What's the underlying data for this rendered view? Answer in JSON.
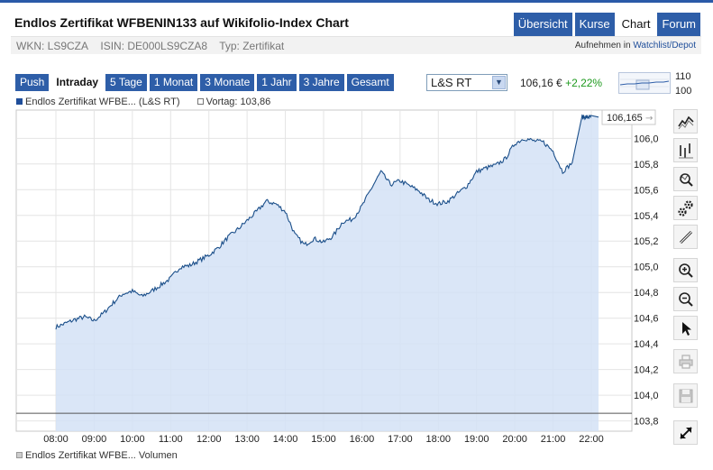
{
  "header": {
    "title": "Endlos Zertifikat WFBENIN133 auf Wikifolio-Index Chart",
    "nav": [
      {
        "label": "Übersicht",
        "active": false
      },
      {
        "label": "Kurse",
        "active": false
      },
      {
        "label": "Chart",
        "active": true
      },
      {
        "label": "Forum",
        "active": false
      }
    ],
    "wkn": "WKN: LS9CZA",
    "isin": "ISIN: DE000LS9CZA8",
    "typ": "Typ: Zertifikat",
    "watch_prefix": "Aufnehmen in",
    "watch_link": "Watchlist/Depot"
  },
  "toolbar": {
    "ranges": [
      {
        "label": "Push",
        "active": false
      },
      {
        "label": "Intraday",
        "active": true
      },
      {
        "label": "5 Tage",
        "active": false
      },
      {
        "label": "1 Monat",
        "active": false
      },
      {
        "label": "3 Monate",
        "active": false
      },
      {
        "label": "1 Jahr",
        "active": false
      },
      {
        "label": "3 Jahre",
        "active": false
      },
      {
        "label": "Gesamt",
        "active": false
      }
    ],
    "exchange": "L&S RT",
    "price": "106,16 €",
    "change": "+2,22%",
    "mini_high": "110",
    "mini_low": "100"
  },
  "legend": {
    "series": "Endlos Zertifikat WFBE... (L&S RT)",
    "prev_close": "Vortag: 103,86",
    "volume": "Endlos Zertifikat WFBE... Volumen"
  },
  "chart_data": {
    "type": "area",
    "series": [
      {
        "name": "Endlos Zertifikat WFBE... (L&S RT)",
        "x": [
          "08:00",
          "08:15",
          "08:30",
          "08:45",
          "09:00",
          "09:15",
          "09:30",
          "09:45",
          "10:00",
          "10:15",
          "10:30",
          "10:45",
          "11:00",
          "11:15",
          "11:30",
          "11:45",
          "12:00",
          "12:15",
          "12:30",
          "12:45",
          "13:00",
          "13:15",
          "13:30",
          "13:45",
          "14:00",
          "14:15",
          "14:30",
          "14:45",
          "15:00",
          "15:15",
          "15:30",
          "15:45",
          "16:00",
          "16:15",
          "16:30",
          "16:45",
          "17:00",
          "17:15",
          "17:30",
          "17:45",
          "18:00",
          "18:15",
          "18:30",
          "18:45",
          "19:00",
          "19:15",
          "19:30",
          "19:45",
          "20:00",
          "20:15",
          "20:30",
          "20:45",
          "21:00",
          "21:15",
          "21:30",
          "21:45",
          "21:50",
          "21:55",
          "22:00"
        ],
        "values": [
          104.53,
          104.56,
          104.59,
          104.61,
          104.58,
          104.64,
          104.72,
          104.79,
          104.81,
          104.77,
          104.81,
          104.86,
          104.91,
          105.0,
          105.01,
          105.05,
          105.09,
          105.15,
          105.23,
          105.29,
          105.36,
          105.43,
          105.51,
          105.49,
          105.43,
          105.25,
          105.17,
          105.22,
          105.19,
          105.24,
          105.35,
          105.37,
          105.47,
          105.61,
          105.74,
          105.64,
          105.67,
          105.63,
          105.59,
          105.52,
          105.49,
          105.51,
          105.57,
          105.63,
          105.74,
          105.77,
          105.79,
          105.84,
          105.96,
          106.0,
          105.98,
          105.97,
          105.9,
          105.74,
          105.81,
          106.165,
          106.165,
          106.165,
          106.165
        ]
      }
    ],
    "prev_close": 103.86,
    "last_label": "106,165",
    "x_ticks": [
      "08:00",
      "09:00",
      "10:00",
      "11:00",
      "12:00",
      "13:00",
      "14:00",
      "15:00",
      "16:00",
      "17:00",
      "18:00",
      "19:00",
      "20:00",
      "21:00",
      "22:00"
    ],
    "y_ticks": [
      "103,8",
      "104,0",
      "104,2",
      "104,4",
      "104,6",
      "104,8",
      "105,0",
      "105,2",
      "105,4",
      "105,6",
      "105,8",
      "106,0"
    ],
    "ylim": [
      103.72,
      106.22
    ],
    "grid": true,
    "colors": {
      "line": "#1b4f8a",
      "fill": "#d3e2f6",
      "prev": "#555555"
    }
  },
  "tools": [
    {
      "name": "line-chart-icon"
    },
    {
      "name": "ohlc-chart-icon"
    },
    {
      "name": "indicator-search-icon"
    },
    {
      "name": "settings-gears-icon"
    },
    {
      "name": "draw-tool-icon"
    },
    {
      "name": "zoom-in-icon"
    },
    {
      "name": "zoom-out-icon"
    },
    {
      "name": "pointer-icon"
    },
    {
      "name": "print-icon"
    },
    {
      "name": "save-icon"
    },
    {
      "name": "fullscreen-icon"
    }
  ]
}
